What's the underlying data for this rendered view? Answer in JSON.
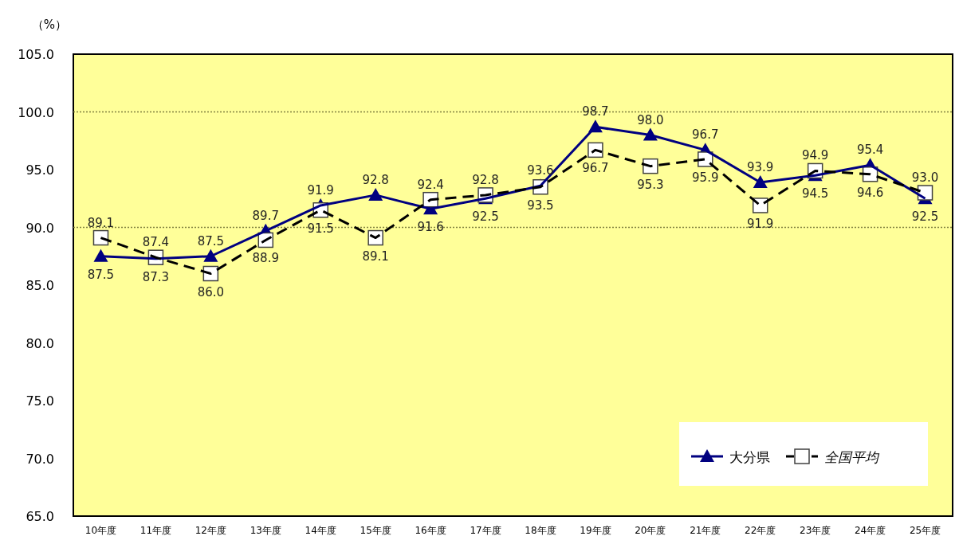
{
  "chart_data": {
    "type": "line",
    "ylabel": "（%）",
    "categories": [
      "10年度",
      "11年度",
      "12年度",
      "13年度",
      "14年度",
      "15年度",
      "16年度",
      "17年度",
      "18年度",
      "19年度",
      "20年度",
      "21年度",
      "22年度",
      "23年度",
      "24年度",
      "25年度"
    ],
    "series": [
      {
        "name": "大分県",
        "color": "#000080",
        "marker": "triangle",
        "line_style": "solid",
        "values": [
          87.5,
          87.3,
          87.5,
          89.7,
          91.9,
          92.8,
          91.6,
          92.5,
          93.6,
          98.7,
          98.0,
          96.7,
          93.9,
          94.5,
          95.4,
          92.5
        ],
        "value_labels": [
          "87.5",
          "87.3",
          "87.5",
          "89.7",
          "91.9",
          "92.8",
          "91.6",
          "92.5",
          "93.6",
          "98.7",
          "98.0",
          "96.7",
          "93.9",
          "94.5",
          "95.4",
          "92.5"
        ]
      },
      {
        "name": "全国平均",
        "color": "#000000",
        "marker": "square",
        "line_style": "dashed",
        "values": [
          89.1,
          87.4,
          86.0,
          88.9,
          91.5,
          89.1,
          92.4,
          92.8,
          93.5,
          96.7,
          95.3,
          95.9,
          91.9,
          94.9,
          94.6,
          93.0
        ],
        "value_labels": [
          "89.1",
          "87.4",
          "86.0",
          "88.9",
          "91.5",
          "89.1",
          "92.4",
          "92.8",
          "93.5",
          "96.7",
          "95.3",
          "95.9",
          "91.9",
          "94.9",
          "94.6",
          "93.0"
        ]
      }
    ],
    "ylim": [
      65,
      105
    ],
    "yticks": [
      {
        "value": 65,
        "label": "65.0"
      },
      {
        "value": 70,
        "label": "70.0"
      },
      {
        "value": 75,
        "label": "75.0"
      },
      {
        "value": 80,
        "label": "80.0"
      },
      {
        "value": 85,
        "label": "85.0"
      },
      {
        "value": 90,
        "label": "90.0"
      },
      {
        "value": 95,
        "label": "95.0"
      },
      {
        "value": 100,
        "label": "100.0"
      },
      {
        "value": 105,
        "label": "105.0"
      }
    ],
    "ref_lines": [
      {
        "axis": "y",
        "value": 90,
        "color": "#808040",
        "line_style": "dotted"
      },
      {
        "axis": "y",
        "value": 100,
        "color": "#808040",
        "line_style": "dotted"
      }
    ],
    "grid": false,
    "legend": "bottom right"
  }
}
